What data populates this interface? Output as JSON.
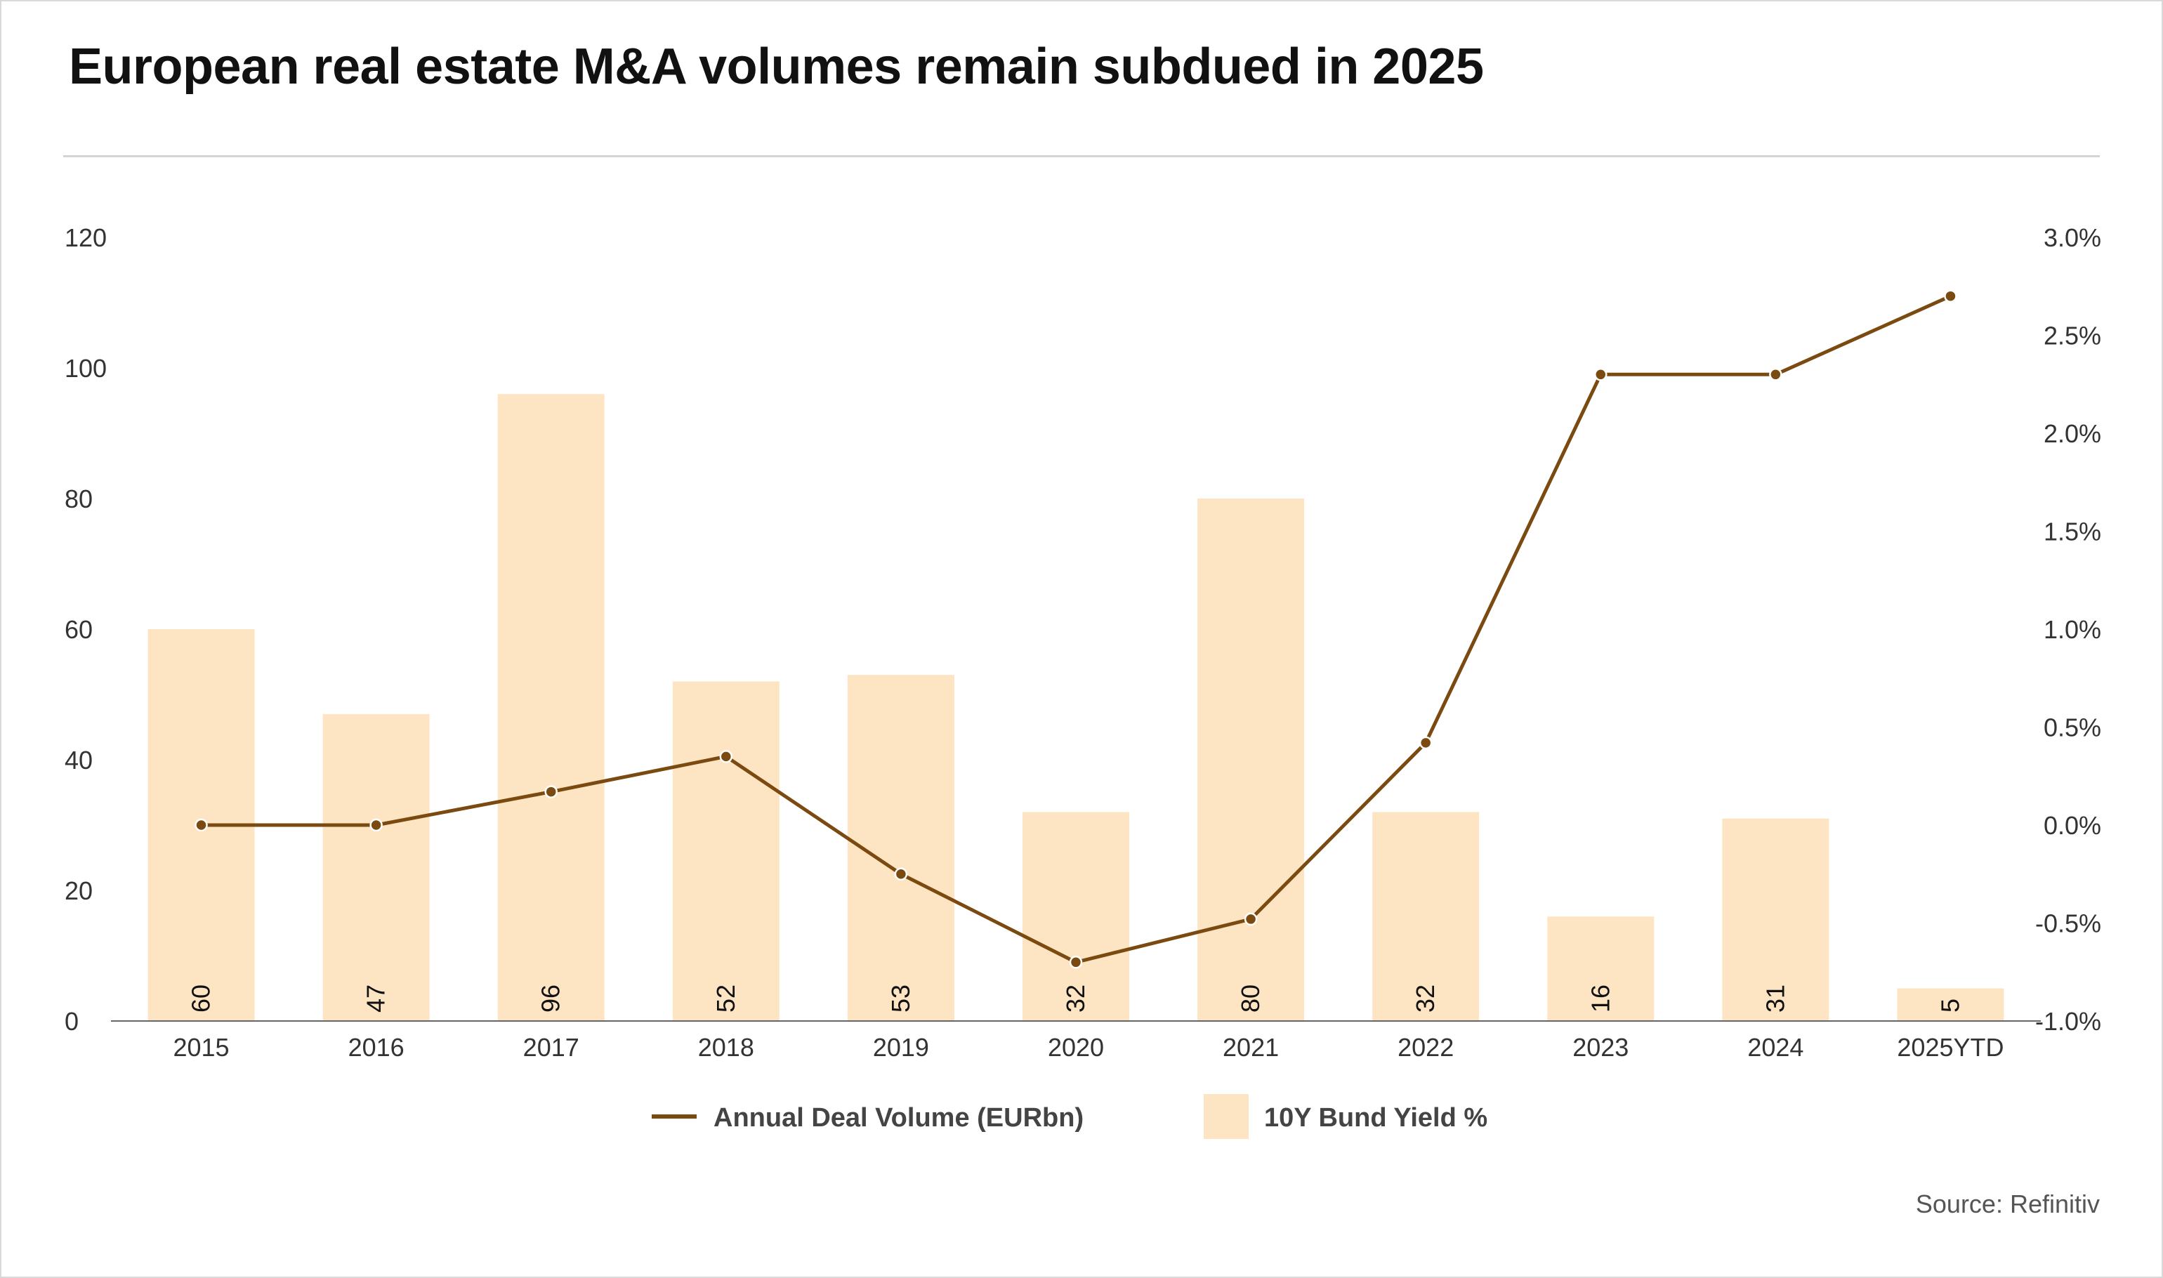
{
  "title": "European real estate M&A volumes remain subdued in 2025",
  "source": "Source: Refinitiv",
  "colors": {
    "bar": "#fde5c4",
    "line": "#7a4a10",
    "marker_fill": "#7a4a10",
    "marker_stroke": "#ffffff",
    "axis_text": "#333333"
  },
  "chart_data": {
    "type": "bar",
    "categories": [
      "2015",
      "2016",
      "2017",
      "2018",
      "2019",
      "2020",
      "2021",
      "2022",
      "2023",
      "2024",
      "2025YTD"
    ],
    "series": [
      {
        "name": "10Y Bund Yield %",
        "type": "bar",
        "axis": "left",
        "values": [
          60,
          47,
          96,
          52,
          53,
          32,
          80,
          32,
          16,
          31,
          5
        ],
        "data_labels": [
          "60",
          "47",
          "96",
          "52",
          "53",
          "32",
          "80",
          "32",
          "16",
          "31",
          "5"
        ]
      },
      {
        "name": "Annual Deal Volume (EURbn)",
        "type": "line",
        "axis": "right",
        "values": [
          0.0,
          0.0,
          0.17,
          0.35,
          -0.25,
          -0.7,
          -0.48,
          0.42,
          2.3,
          2.3,
          2.7
        ]
      }
    ],
    "y_left": {
      "ylim": [
        0,
        120
      ],
      "ticks": [
        0,
        20,
        40,
        60,
        80,
        100,
        120
      ],
      "tick_labels": [
        "0",
        "20",
        "40",
        "60",
        "80",
        "100",
        "120"
      ]
    },
    "y_right": {
      "ylim": [
        -1.0,
        3.0
      ],
      "ticks": [
        -1.0,
        -0.5,
        0.0,
        0.5,
        1.0,
        1.5,
        2.0,
        2.5,
        3.0
      ],
      "tick_labels": [
        "-1.0%",
        "-0.5%",
        "0.0%",
        "0.5%",
        "1.0%",
        "1.5%",
        "2.0%",
        "2.5%",
        "3.0%"
      ]
    },
    "grid": false,
    "legend_position": "bottom-center"
  }
}
